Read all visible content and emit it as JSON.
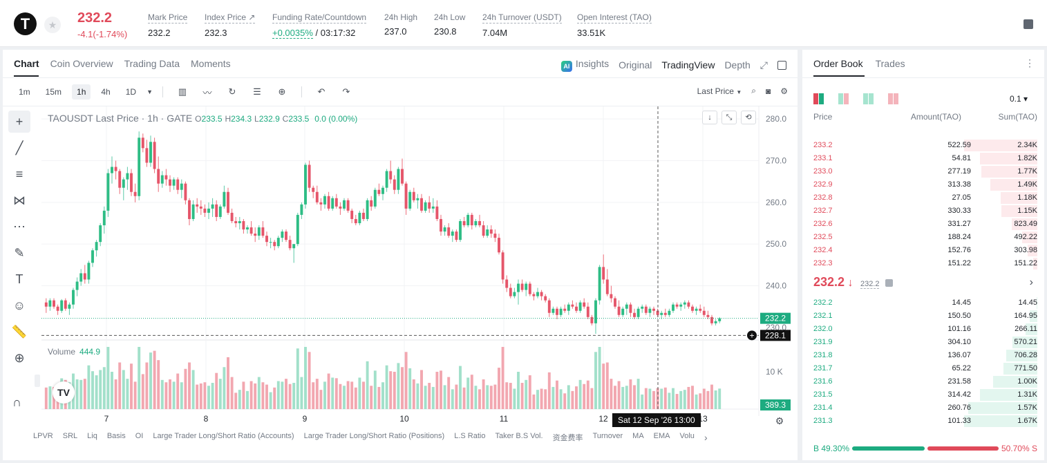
{
  "header": {
    "logo_letter": "T",
    "last_price": "232.2",
    "change": "-4.1(-1.74%)",
    "stats": [
      {
        "label": "Mark Price",
        "value": "232.2"
      },
      {
        "label": "Index Price ↗",
        "value": "232.3"
      },
      {
        "label": "Funding Rate/Countdown",
        "value_green": "+0.0035%",
        "value": "/ 03:17:32"
      },
      {
        "label": "24h High",
        "value": "237.0"
      },
      {
        "label": "24h Low",
        "value": "230.8"
      },
      {
        "label": "24h Turnover (USDT)",
        "value": "7.04M"
      },
      {
        "label": "Open Interest (TAO)",
        "value": "33.51K"
      }
    ]
  },
  "chart_tabs": [
    "Chart",
    "Coin Overview",
    "Trading Data",
    "Moments"
  ],
  "chart_right_tabs": {
    "insights": "Insights",
    "original": "Original",
    "tradingview": "TradingView",
    "depth": "Depth"
  },
  "intervals": [
    "1m",
    "15m",
    "1h",
    "4h",
    "1D"
  ],
  "selected_interval": "1h",
  "price_type": "Last Price",
  "legend": {
    "title": "TAOUSDT Last Price · 1h · GATE",
    "O": "233.5",
    "H": "234.3",
    "L": "232.9",
    "C": "233.5",
    "chg": "0.0 (0.00%)"
  },
  "volume": {
    "label": "Volume",
    "value": "444.9"
  },
  "price_axis_labels": [
    "280.0",
    "270.0",
    "260.0",
    "250.0",
    "240.0"
  ],
  "price_axis_extra": "230.0",
  "volume_axis_label": "10 K",
  "current_price_tag": "232.2",
  "crosshair_price_tag": "228.1",
  "volume_tag": "389.3",
  "date_labels": [
    "7",
    "8",
    "9",
    "10",
    "11",
    "12",
    "13"
  ],
  "crosshair_time": "Sat 12 Sep '26   13:00",
  "indicators": [
    "LPVR",
    "SRL",
    "Liq",
    "Basis",
    "OI",
    "Large Trader Long/Short Ratio (Accounts)",
    "Large Trader Long/Short Ratio (Positions)",
    "L.S Ratio",
    "Taker B.S Vol.",
    "资金费率",
    "Turnover",
    "MA",
    "EMA",
    "Volu"
  ],
  "colors": {
    "up": "#1dab80",
    "down": "#e04a5a"
  },
  "chart_data": {
    "type": "candlestick",
    "symbol": "TAOUSDT",
    "interval": "1h",
    "ylim": [
      227,
      283
    ],
    "x_range": [
      "6 Sep 20:00",
      "13 Sep 02:00"
    ],
    "candles_ohlc": [
      [
        236,
        237,
        233.5,
        235
      ],
      [
        235,
        237,
        234,
        236.5
      ],
      [
        236.5,
        237,
        234.5,
        235
      ],
      [
        235,
        235.5,
        233,
        234
      ],
      [
        234,
        236.8,
        233.5,
        236.5
      ],
      [
        236.5,
        237,
        234,
        234.5
      ],
      [
        234.5,
        236,
        233,
        235.5
      ],
      [
        235.5,
        239.5,
        234.5,
        239
      ],
      [
        239,
        242,
        237.5,
        241
      ],
      [
        241,
        244,
        240,
        243
      ],
      [
        243,
        245,
        240.5,
        241.5
      ],
      [
        241.5,
        246,
        240.5,
        245.5
      ],
      [
        245.5,
        249,
        244.5,
        248.5
      ],
      [
        248.5,
        251,
        247,
        250.5
      ],
      [
        250.5,
        255,
        249.5,
        254.5
      ],
      [
        254.5,
        259,
        252.5,
        258
      ],
      [
        258,
        268,
        256.5,
        267
      ],
      [
        267,
        271,
        264.5,
        268.5
      ],
      [
        268.5,
        270,
        265.5,
        267.5
      ],
      [
        267.5,
        268,
        262,
        263.5
      ],
      [
        263.5,
        266,
        260.5,
        265.5
      ],
      [
        265.5,
        268.5,
        263,
        267
      ],
      [
        267,
        268,
        261.5,
        262.5
      ],
      [
        262.5,
        264.5,
        260,
        261.5
      ],
      [
        261.5,
        277,
        260.5,
        275.5
      ],
      [
        275.5,
        276.5,
        272,
        273
      ],
      [
        273,
        275,
        268.5,
        269.5
      ],
      [
        269.5,
        276,
        268.5,
        274.5
      ],
      [
        274.5,
        275.5,
        267,
        268
      ],
      [
        268,
        271,
        262.5,
        264.5
      ],
      [
        264.5,
        267.5,
        263.5,
        266.5
      ],
      [
        266.5,
        268,
        264,
        265.5
      ],
      [
        265.5,
        266.5,
        262.5,
        264
      ],
      [
        264,
        266,
        263,
        265.5
      ],
      [
        265.5,
        266,
        262,
        263
      ],
      [
        263,
        265.5,
        261,
        264.5
      ],
      [
        264.5,
        265,
        259.5,
        260.5
      ],
      [
        260.5,
        261,
        254.5,
        256
      ],
      [
        256,
        260.5,
        255.5,
        259.5
      ],
      [
        259.5,
        261,
        257.5,
        259
      ],
      [
        259,
        260.5,
        257,
        258.5
      ],
      [
        258.5,
        259.5,
        256.5,
        257.5
      ],
      [
        257.5,
        260,
        256,
        258.5
      ],
      [
        258.5,
        261,
        256.5,
        259.5
      ],
      [
        259.5,
        260.5,
        255.5,
        256.5
      ],
      [
        256.5,
        259.5,
        256,
        259
      ],
      [
        259,
        264,
        258.5,
        262.5
      ],
      [
        262.5,
        263.5,
        257,
        257.5
      ],
      [
        257.5,
        258.5,
        255,
        255.5
      ],
      [
        255.5,
        256.5,
        254,
        255
      ],
      [
        255,
        256.5,
        253.5,
        255.5
      ],
      [
        255.5,
        256,
        252.5,
        253.5
      ],
      [
        253.5,
        254.5,
        252.5,
        254
      ],
      [
        254,
        255.5,
        252,
        252.5
      ],
      [
        252.5,
        254,
        250.5,
        252
      ],
      [
        252,
        254.5,
        251,
        254
      ],
      [
        254,
        255.5,
        251.5,
        252
      ],
      [
        252,
        253,
        249.5,
        250.5
      ],
      [
        250.5,
        251.5,
        249,
        250.5
      ],
      [
        250.5,
        251,
        248.5,
        249.5
      ],
      [
        249.5,
        252,
        249,
        251.5
      ],
      [
        251.5,
        253.5,
        250.5,
        253
      ],
      [
        253,
        253.5,
        250.5,
        251
      ],
      [
        251,
        252,
        248.5,
        249
      ],
      [
        249,
        250,
        245.5,
        250
      ],
      [
        250,
        257.5,
        249.5,
        257
      ],
      [
        257,
        260,
        256,
        259.5
      ],
      [
        259.5,
        269.5,
        258.5,
        269
      ],
      [
        269,
        270,
        262.5,
        263.5
      ],
      [
        263.5,
        264,
        261,
        262.5
      ],
      [
        262.5,
        264,
        259.5,
        260
      ],
      [
        260,
        261,
        258,
        259.5
      ],
      [
        259.5,
        262,
        258.5,
        261.5
      ],
      [
        261.5,
        262.5,
        258,
        258.5
      ],
      [
        258.5,
        261.5,
        258,
        261
      ],
      [
        261,
        262,
        258.5,
        259
      ],
      [
        259,
        260,
        257,
        258.5
      ],
      [
        258.5,
        261,
        258,
        260.5
      ],
      [
        260.5,
        261,
        257.5,
        258
      ],
      [
        258,
        258.5,
        255,
        256
      ],
      [
        256,
        257,
        254.5,
        255
      ],
      [
        255,
        258,
        254.5,
        257.5
      ],
      [
        257.5,
        258.5,
        255.5,
        256
      ],
      [
        256,
        261,
        255.5,
        260.5
      ],
      [
        260.5,
        261.5,
        258,
        259
      ],
      [
        259,
        263.5,
        258.5,
        263
      ],
      [
        263,
        264.5,
        261.5,
        262
      ],
      [
        262,
        264,
        260.5,
        263.5
      ],
      [
        263.5,
        268,
        262.5,
        267.5
      ],
      [
        267.5,
        270,
        264.5,
        265.5
      ],
      [
        265.5,
        266.5,
        262,
        263
      ],
      [
        263,
        268.5,
        262,
        268
      ],
      [
        268,
        270.5,
        264,
        264.5
      ],
      [
        264.5,
        265,
        257,
        258.5
      ],
      [
        258.5,
        263,
        258,
        262.5
      ],
      [
        262.5,
        263.5,
        260,
        260.5
      ],
      [
        260.5,
        262,
        258.5,
        261
      ],
      [
        261,
        262,
        257.5,
        258
      ],
      [
        258,
        260.5,
        257.5,
        260
      ],
      [
        260,
        261.5,
        257.5,
        258.5
      ],
      [
        258.5,
        261,
        257.5,
        259
      ],
      [
        259,
        260.5,
        255.5,
        256
      ],
      [
        256,
        257,
        252,
        253
      ],
      [
        253,
        254.5,
        252,
        254
      ],
      [
        254,
        255,
        251.5,
        252
      ],
      [
        252,
        253.5,
        250.5,
        253
      ],
      [
        253,
        253.5,
        250.5,
        251
      ],
      [
        251,
        256,
        250.5,
        255.5
      ],
      [
        255.5,
        256.5,
        254,
        254.5
      ],
      [
        254.5,
        257.5,
        254,
        257
      ],
      [
        257,
        257.5,
        253.5,
        254.5
      ],
      [
        254.5,
        256,
        254,
        255.5
      ],
      [
        255.5,
        257,
        254,
        254.5
      ],
      [
        254.5,
        255.5,
        251.5,
        252
      ],
      [
        252,
        254.5,
        251.5,
        253.5
      ],
      [
        253.5,
        254.5,
        251.5,
        252.5
      ],
      [
        252.5,
        253.5,
        250.5,
        251.5
      ],
      [
        251.5,
        252.5,
        247.5,
        248
      ],
      [
        248,
        248.5,
        240.5,
        241.5
      ],
      [
        241.5,
        242.5,
        238.5,
        239.5
      ],
      [
        239.5,
        240.5,
        237,
        237.5
      ],
      [
        237.5,
        239.5,
        237,
        238.5
      ],
      [
        238.5,
        241.5,
        235.5,
        240.5
      ],
      [
        240.5,
        241.5,
        238.5,
        239
      ],
      [
        239,
        241,
        237.5,
        240.5
      ],
      [
        240.5,
        241,
        237.5,
        238
      ],
      [
        238,
        238.5,
        236.5,
        237.5
      ],
      [
        237.5,
        239.5,
        237,
        238.5
      ],
      [
        238.5,
        239,
        236.5,
        237.5
      ],
      [
        237.5,
        238,
        236,
        236.5
      ],
      [
        236.5,
        237,
        232.5,
        233.5
      ],
      [
        233.5,
        235,
        233,
        234.5
      ],
      [
        234.5,
        235,
        232,
        233
      ],
      [
        233,
        235,
        232.5,
        234.5
      ],
      [
        234.5,
        235.5,
        233.5,
        234
      ],
      [
        234,
        236,
        233,
        235.5
      ],
      [
        235.5,
        236.5,
        234.5,
        235
      ],
      [
        235,
        236,
        233.5,
        234
      ],
      [
        234,
        236.5,
        233.5,
        236
      ],
      [
        236,
        237,
        234.5,
        235
      ],
      [
        235,
        236,
        232,
        232.5
      ],
      [
        232.5,
        233,
        230.5,
        231
      ],
      [
        231,
        237,
        228.5,
        236.5
      ],
      [
        236.5,
        245,
        235.5,
        244.5
      ],
      [
        244.5,
        247.5,
        240.5,
        241.5
      ],
      [
        241.5,
        244,
        237.5,
        238
      ],
      [
        238,
        240,
        236,
        237
      ],
      [
        237,
        237.5,
        234.5,
        235
      ],
      [
        235,
        236.5,
        232.5,
        233
      ],
      [
        233,
        235,
        232.5,
        234.5
      ],
      [
        234.5,
        236,
        233,
        235.5
      ],
      [
        235.5,
        236,
        232.5,
        233.5
      ],
      [
        233.5,
        234.5,
        232,
        232.5
      ],
      [
        232.5,
        235,
        232,
        234.5
      ],
      [
        234.5,
        235.5,
        233.5,
        235
      ],
      [
        235,
        235.5,
        233,
        233.5
      ],
      [
        233.5,
        235,
        232.5,
        234.5
      ],
      [
        234.5,
        235,
        233,
        234
      ],
      [
        234,
        234.5,
        232.5,
        233
      ],
      [
        233,
        234,
        232,
        233.5
      ],
      [
        233.5,
        234.5,
        232.5,
        233
      ],
      [
        233,
        234.5,
        232.5,
        234
      ],
      [
        234,
        236,
        233.5,
        235.5
      ],
      [
        235.5,
        236,
        234.5,
        235
      ],
      [
        235,
        236,
        234,
        235.5
      ],
      [
        235.5,
        236.5,
        234.5,
        236
      ],
      [
        236,
        236.5,
        234.5,
        235
      ],
      [
        235,
        235.5,
        233.5,
        234
      ],
      [
        234,
        235,
        233,
        234.5
      ],
      [
        234.5,
        235.5,
        233.5,
        234
      ],
      [
        234,
        235,
        232.5,
        233
      ],
      [
        233,
        234,
        232,
        232.5
      ],
      [
        232.5,
        233,
        230.5,
        231
      ],
      [
        231,
        232,
        230.5,
        231.5
      ],
      [
        231.5,
        232.5,
        231,
        232.2
      ]
    ],
    "volume_max": 16000
  },
  "orderbook": {
    "tabs": [
      "Order Book",
      "Trades"
    ],
    "tick": "0.1 ▾",
    "headers": {
      "price": "Price",
      "amount": "Amount(TAO)",
      "sum": "Sum(TAO)"
    },
    "asks": [
      {
        "price": "233.2",
        "amount": "522.59",
        "sum": "2.34K",
        "depth": 1.0
      },
      {
        "price": "233.1",
        "amount": "54.81",
        "sum": "1.82K",
        "depth": 0.78
      },
      {
        "price": "233.0",
        "amount": "277.19",
        "sum": "1.77K",
        "depth": 0.76
      },
      {
        "price": "232.9",
        "amount": "313.38",
        "sum": "1.49K",
        "depth": 0.64
      },
      {
        "price": "232.8",
        "amount": "27.05",
        "sum": "1.18K",
        "depth": 0.5
      },
      {
        "price": "232.7",
        "amount": "330.33",
        "sum": "1.15K",
        "depth": 0.49
      },
      {
        "price": "232.6",
        "amount": "331.27",
        "sum": "823.49",
        "depth": 0.35
      },
      {
        "price": "232.5",
        "amount": "188.24",
        "sum": "492.22",
        "depth": 0.21
      },
      {
        "price": "232.4",
        "amount": "152.76",
        "sum": "303.98",
        "depth": 0.13
      },
      {
        "price": "232.3",
        "amount": "151.22",
        "sum": "151.22",
        "depth": 0.06
      }
    ],
    "mid_price": "232.2",
    "mid_arrow": "↓",
    "mark_price": "232.2",
    "bids": [
      {
        "price": "232.2",
        "amount": "14.45",
        "sum": "14.45",
        "depth": 0.01
      },
      {
        "price": "232.1",
        "amount": "150.50",
        "sum": "164.95",
        "depth": 0.1
      },
      {
        "price": "232.0",
        "amount": "101.16",
        "sum": "266.11",
        "depth": 0.16
      },
      {
        "price": "231.9",
        "amount": "304.10",
        "sum": "570.21",
        "depth": 0.34
      },
      {
        "price": "231.8",
        "amount": "136.07",
        "sum": "706.28",
        "depth": 0.42
      },
      {
        "price": "231.7",
        "amount": "65.22",
        "sum": "771.50",
        "depth": 0.46
      },
      {
        "price": "231.6",
        "amount": "231.58",
        "sum": "1.00K",
        "depth": 0.6
      },
      {
        "price": "231.5",
        "amount": "314.42",
        "sum": "1.31K",
        "depth": 0.78
      },
      {
        "price": "231.4",
        "amount": "260.76",
        "sum": "1.57K",
        "depth": 0.94
      },
      {
        "price": "231.3",
        "amount": "101.33",
        "sum": "1.67K",
        "depth": 1.0
      }
    ],
    "buy_label": "B 49.30%",
    "sell_label": "50.70% S",
    "buy_ratio": 0.493
  }
}
